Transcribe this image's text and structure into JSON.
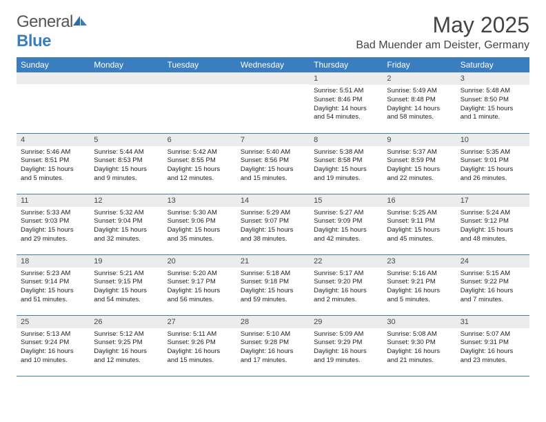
{
  "brand": {
    "name1": "General",
    "name2": "Blue"
  },
  "title": "May 2025",
  "location": "Bad Muender am Deister, Germany",
  "colors": {
    "header_bg": "#3b7ec0",
    "date_bar_bg": "#ececec",
    "border": "#3b7ec0"
  },
  "day_headers": [
    "Sunday",
    "Monday",
    "Tuesday",
    "Wednesday",
    "Thursday",
    "Friday",
    "Saturday"
  ],
  "weeks": [
    [
      null,
      null,
      null,
      null,
      {
        "d": "1",
        "sr": "5:51 AM",
        "ss": "8:46 PM",
        "dl": "14 hours and 54 minutes."
      },
      {
        "d": "2",
        "sr": "5:49 AM",
        "ss": "8:48 PM",
        "dl": "14 hours and 58 minutes."
      },
      {
        "d": "3",
        "sr": "5:48 AM",
        "ss": "8:50 PM",
        "dl": "15 hours and 1 minute."
      }
    ],
    [
      {
        "d": "4",
        "sr": "5:46 AM",
        "ss": "8:51 PM",
        "dl": "15 hours and 5 minutes."
      },
      {
        "d": "5",
        "sr": "5:44 AM",
        "ss": "8:53 PM",
        "dl": "15 hours and 9 minutes."
      },
      {
        "d": "6",
        "sr": "5:42 AM",
        "ss": "8:55 PM",
        "dl": "15 hours and 12 minutes."
      },
      {
        "d": "7",
        "sr": "5:40 AM",
        "ss": "8:56 PM",
        "dl": "15 hours and 15 minutes."
      },
      {
        "d": "8",
        "sr": "5:38 AM",
        "ss": "8:58 PM",
        "dl": "15 hours and 19 minutes."
      },
      {
        "d": "9",
        "sr": "5:37 AM",
        "ss": "8:59 PM",
        "dl": "15 hours and 22 minutes."
      },
      {
        "d": "10",
        "sr": "5:35 AM",
        "ss": "9:01 PM",
        "dl": "15 hours and 26 minutes."
      }
    ],
    [
      {
        "d": "11",
        "sr": "5:33 AM",
        "ss": "9:03 PM",
        "dl": "15 hours and 29 minutes."
      },
      {
        "d": "12",
        "sr": "5:32 AM",
        "ss": "9:04 PM",
        "dl": "15 hours and 32 minutes."
      },
      {
        "d": "13",
        "sr": "5:30 AM",
        "ss": "9:06 PM",
        "dl": "15 hours and 35 minutes."
      },
      {
        "d": "14",
        "sr": "5:29 AM",
        "ss": "9:07 PM",
        "dl": "15 hours and 38 minutes."
      },
      {
        "d": "15",
        "sr": "5:27 AM",
        "ss": "9:09 PM",
        "dl": "15 hours and 42 minutes."
      },
      {
        "d": "16",
        "sr": "5:25 AM",
        "ss": "9:11 PM",
        "dl": "15 hours and 45 minutes."
      },
      {
        "d": "17",
        "sr": "5:24 AM",
        "ss": "9:12 PM",
        "dl": "15 hours and 48 minutes."
      }
    ],
    [
      {
        "d": "18",
        "sr": "5:23 AM",
        "ss": "9:14 PM",
        "dl": "15 hours and 51 minutes."
      },
      {
        "d": "19",
        "sr": "5:21 AM",
        "ss": "9:15 PM",
        "dl": "15 hours and 54 minutes."
      },
      {
        "d": "20",
        "sr": "5:20 AM",
        "ss": "9:17 PM",
        "dl": "15 hours and 56 minutes."
      },
      {
        "d": "21",
        "sr": "5:18 AM",
        "ss": "9:18 PM",
        "dl": "15 hours and 59 minutes."
      },
      {
        "d": "22",
        "sr": "5:17 AM",
        "ss": "9:20 PM",
        "dl": "16 hours and 2 minutes."
      },
      {
        "d": "23",
        "sr": "5:16 AM",
        "ss": "9:21 PM",
        "dl": "16 hours and 5 minutes."
      },
      {
        "d": "24",
        "sr": "5:15 AM",
        "ss": "9:22 PM",
        "dl": "16 hours and 7 minutes."
      }
    ],
    [
      {
        "d": "25",
        "sr": "5:13 AM",
        "ss": "9:24 PM",
        "dl": "16 hours and 10 minutes."
      },
      {
        "d": "26",
        "sr": "5:12 AM",
        "ss": "9:25 PM",
        "dl": "16 hours and 12 minutes."
      },
      {
        "d": "27",
        "sr": "5:11 AM",
        "ss": "9:26 PM",
        "dl": "16 hours and 15 minutes."
      },
      {
        "d": "28",
        "sr": "5:10 AM",
        "ss": "9:28 PM",
        "dl": "16 hours and 17 minutes."
      },
      {
        "d": "29",
        "sr": "5:09 AM",
        "ss": "9:29 PM",
        "dl": "16 hours and 19 minutes."
      },
      {
        "d": "30",
        "sr": "5:08 AM",
        "ss": "9:30 PM",
        "dl": "16 hours and 21 minutes."
      },
      {
        "d": "31",
        "sr": "5:07 AM",
        "ss": "9:31 PM",
        "dl": "16 hours and 23 minutes."
      }
    ]
  ],
  "labels": {
    "sunrise": "Sunrise: ",
    "sunset": "Sunset: ",
    "daylight": "Daylight: "
  }
}
